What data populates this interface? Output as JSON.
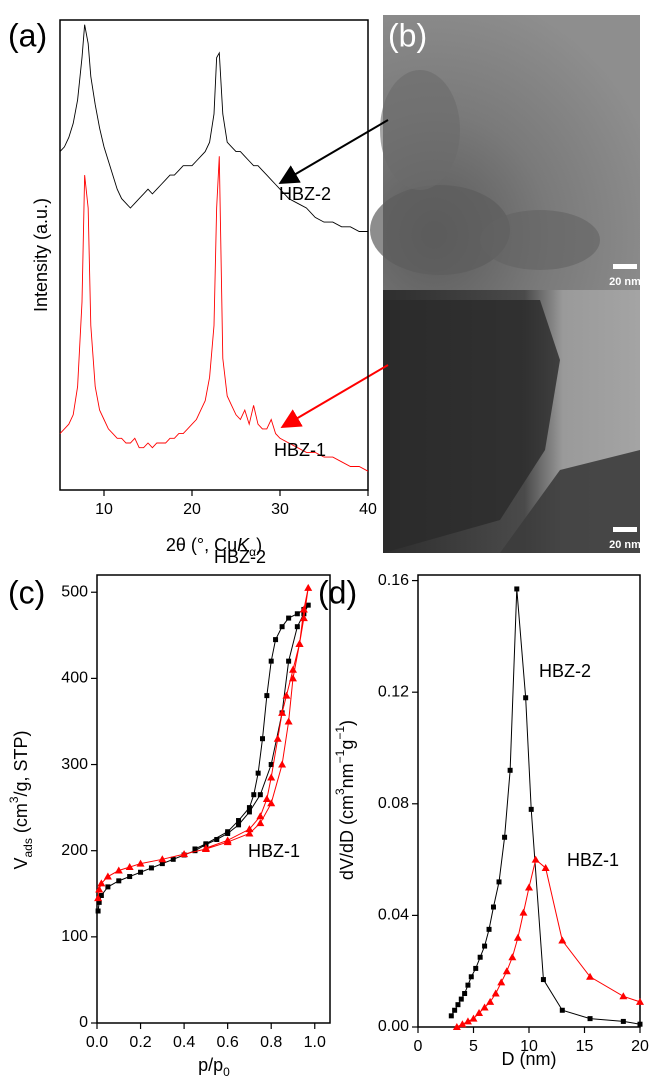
{
  "chart_data": [
    {
      "type": "line",
      "label": "(a)",
      "ylabel": "Intensity (a.u.)",
      "xlabel": [
        "2θ (°, Cu",
        "K",
        "α",
        ")"
      ],
      "xlim": [
        5,
        40
      ],
      "xticks": [
        10,
        20,
        30,
        40
      ],
      "ylim": [
        0,
        100
      ],
      "x": [
        5,
        5.5,
        6,
        6.5,
        7,
        7.5,
        7.8,
        8.2,
        8.5,
        9,
        9.5,
        10,
        10.5,
        11,
        11.5,
        12,
        12.5,
        13,
        13.5,
        14,
        14.5,
        15,
        15.5,
        16,
        16.5,
        17,
        17.5,
        18,
        18.5,
        19,
        19.5,
        20,
        20.5,
        21,
        21.5,
        22,
        22.5,
        22.8,
        23.1,
        23.5,
        24,
        24.5,
        25,
        25.5,
        26,
        26.5,
        27,
        27.5,
        28,
        28.5,
        29,
        29.5,
        30,
        31,
        32,
        33,
        34,
        35,
        36,
        37,
        38,
        39,
        40
      ],
      "series": [
        {
          "name": "HBZ-2",
          "color": "#000000",
          "values": [
            72,
            73,
            75,
            78,
            83,
            92,
            99,
            95,
            88,
            82,
            77,
            73,
            70,
            67,
            64,
            62,
            61,
            60,
            61,
            62,
            63,
            64,
            63,
            64,
            65,
            66,
            67,
            67,
            68,
            69,
            69,
            69,
            70,
            71,
            72,
            74,
            80,
            92,
            93,
            80,
            74,
            73,
            72,
            72,
            71,
            70,
            69,
            69,
            68,
            67,
            66,
            65,
            64,
            62,
            61,
            60,
            58,
            57,
            57,
            56,
            56,
            55,
            55
          ]
        },
        {
          "name": "HBZ-1",
          "color": "#ff0000",
          "values": [
            12,
            13,
            14,
            16,
            22,
            40,
            67,
            60,
            35,
            22,
            17,
            15,
            13,
            12,
            11,
            11,
            10,
            10,
            11,
            9,
            9,
            10,
            9,
            10,
            10,
            10,
            11,
            11,
            12,
            12,
            13,
            14,
            15,
            17,
            19,
            24,
            35,
            60,
            71,
            28,
            20,
            18,
            16,
            15,
            17,
            14,
            18,
            14,
            13,
            13,
            15,
            12,
            11,
            10,
            9,
            8,
            8,
            7,
            7,
            6,
            5,
            5,
            4
          ]
        }
      ],
      "annotations": [
        "HBZ-2",
        "HBZ-1"
      ]
    },
    {
      "type": "line",
      "label": "(c)",
      "ylabel": [
        "V",
        "ads",
        " (cm",
        "3",
        "/g, STP)"
      ],
      "xlabel": [
        "p/p",
        "0"
      ],
      "xlim": [
        0,
        1.07
      ],
      "xticks": [
        {
          "value": 0,
          "label": "0.0"
        },
        0.2,
        0.4,
        0.6,
        0.8,
        {
          "value": 1,
          "label": "1.0"
        }
      ],
      "ylim": [
        0,
        520
      ],
      "yticks": [
        0,
        100,
        200,
        300,
        400,
        500
      ],
      "series": [
        {
          "name": "HBZ-2",
          "color": "#000000",
          "marker": "square",
          "x": [
            0.005,
            0.01,
            0.02,
            0.05,
            0.1,
            0.15,
            0.2,
            0.25,
            0.3,
            0.35,
            0.4,
            0.45,
            0.5,
            0.55,
            0.6,
            0.65,
            0.7,
            0.75,
            0.8,
            0.85,
            0.88,
            0.92,
            0.95,
            0.97,
            0.95,
            0.92,
            0.88,
            0.85,
            0.82,
            0.8,
            0.78,
            0.76,
            0.74,
            0.72,
            0.7,
            0.65,
            0.6,
            0.5,
            0.45
          ],
          "values": [
            130,
            140,
            148,
            158,
            165,
            170,
            175,
            180,
            185,
            190,
            195,
            200,
            207,
            213,
            220,
            230,
            245,
            265,
            300,
            360,
            420,
            460,
            475,
            485,
            480,
            475,
            470,
            460,
            445,
            420,
            380,
            330,
            290,
            265,
            250,
            235,
            222,
            208,
            202
          ]
        },
        {
          "name": "HBZ-1",
          "color": "#ff0000",
          "marker": "triangle",
          "x": [
            0.005,
            0.01,
            0.02,
            0.05,
            0.1,
            0.15,
            0.2,
            0.3,
            0.4,
            0.5,
            0.6,
            0.7,
            0.75,
            0.8,
            0.85,
            0.88,
            0.9,
            0.93,
            0.95,
            0.97,
            0.95,
            0.93,
            0.9,
            0.87,
            0.85,
            0.83,
            0.8,
            0.78,
            0.75,
            0.7,
            0.6,
            0.5
          ],
          "values": [
            145,
            155,
            162,
            170,
            177,
            181,
            185,
            190,
            196,
            202,
            210,
            220,
            232,
            255,
            300,
            350,
            400,
            440,
            470,
            505,
            480,
            440,
            410,
            380,
            360,
            330,
            285,
            260,
            240,
            225,
            212,
            203
          ]
        }
      ],
      "annotations": [
        "HBZ-2",
        "HBZ-1"
      ]
    },
    {
      "type": "line",
      "label": "(d)",
      "ylabel": [
        "dV/dD (cm",
        "3",
        "nm",
        "−1",
        "g",
        "−1",
        ")"
      ],
      "xlabel": "D (nm)",
      "xlim": [
        0,
        20
      ],
      "xticks": [
        0,
        5,
        10,
        15,
        20
      ],
      "ylim": [
        0,
        0.162
      ],
      "yticks": [
        {
          "value": 0,
          "label": "0.00"
        },
        0.04,
        0.08,
        0.12,
        0.16
      ],
      "series": [
        {
          "name": "HBZ-2",
          "color": "#000000",
          "marker": "square",
          "x": [
            3,
            3.3,
            3.6,
            3.9,
            4.2,
            4.5,
            4.8,
            5.2,
            5.6,
            6,
            6.4,
            6.8,
            7.3,
            7.8,
            8.3,
            8.9,
            9.7,
            10.2,
            11.3,
            13,
            15.5,
            18.5,
            20
          ],
          "values": [
            0.004,
            0.006,
            0.008,
            0.01,
            0.012,
            0.015,
            0.018,
            0.021,
            0.025,
            0.029,
            0.035,
            0.043,
            0.052,
            0.068,
            0.092,
            0.157,
            0.118,
            0.078,
            0.017,
            0.006,
            0.003,
            0.002,
            0.001
          ]
        },
        {
          "name": "HBZ-1",
          "color": "#ff0000",
          "marker": "triangle",
          "x": [
            3.5,
            4,
            4.5,
            5,
            5.5,
            6,
            6.5,
            7,
            7.5,
            8,
            8.5,
            9,
            9.5,
            10,
            10.6,
            11.5,
            13,
            15.5,
            18.5,
            20
          ],
          "values": [
            0,
            0.001,
            0.002,
            0.003,
            0.005,
            0.007,
            0.009,
            0.012,
            0.016,
            0.02,
            0.025,
            0.032,
            0.041,
            0.05,
            0.06,
            0.057,
            0.031,
            0.018,
            0.011,
            0.009
          ]
        }
      ],
      "annotations": [
        "HBZ-2",
        "HBZ-1"
      ]
    }
  ],
  "panel_b": {
    "label": "(b)",
    "scale_bars": [
      "20 nm",
      "20 nm"
    ]
  }
}
